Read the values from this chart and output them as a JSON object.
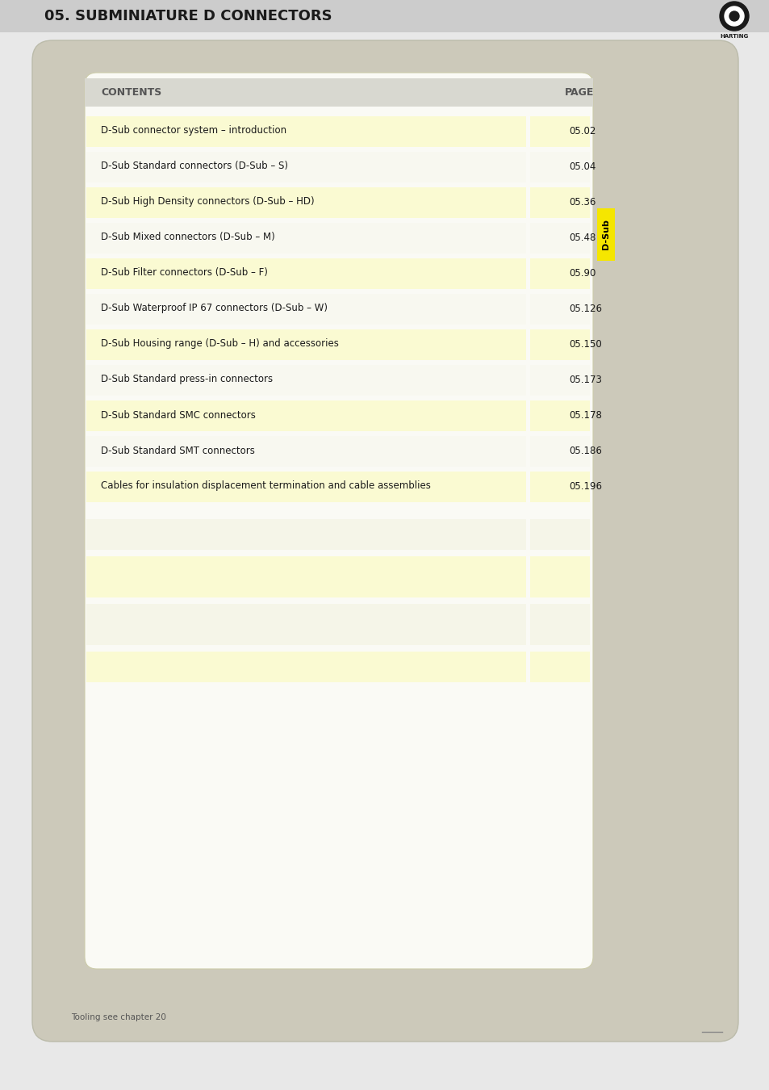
{
  "page_bg": "#e8e8e8",
  "card_bg": "#d8d5c8",
  "inner_bg": "#f5f5e8",
  "header_bar_color": "#d0cfc8",
  "title_text": "05. SUBMINIATURE D CONNECTORS",
  "title_color": "#1a1a1a",
  "title_fontsize": 13,
  "contents_label": "CONTENTS",
  "page_label": "PAGE",
  "header_text_color": "#555555",
  "tab_text": "D-Sub",
  "tab_bg": "#f5e600",
  "tab_text_color": "#000000",
  "footer_text": "Tooling see chapter 20",
  "footer_color": "#555555",
  "row_yellow": "#fafad2",
  "row_white": "#f8f8f0",
  "entries": [
    {
      "label": "D-Sub connector system – introduction",
      "page": "05.02",
      "yellow": true
    },
    {
      "label": "D-Sub Standard connectors (D-Sub – S)",
      "page": "05.04",
      "yellow": false
    },
    {
      "label": "D-Sub High Density connectors (D-Sub – HD)",
      "page": "05.36",
      "yellow": true
    },
    {
      "label": "D-Sub Mixed connectors (D-Sub – M)",
      "page": "05.48",
      "yellow": false
    },
    {
      "label": "D-Sub Filter connectors (D-Sub – F)",
      "page": "05.90",
      "yellow": true
    },
    {
      "label": "D-Sub Waterproof IP 67 connectors (D-Sub – W)",
      "page": "05.126",
      "yellow": false
    },
    {
      "label": "D-Sub Housing range (D-Sub – H) and accessories",
      "page": "05.150",
      "yellow": true
    },
    {
      "label": "D-Sub Standard press-in connectors",
      "page": "05.173",
      "yellow": false
    },
    {
      "label": "D-Sub Standard SMC connectors",
      "page": "05.178",
      "yellow": true
    },
    {
      "label": "D-Sub Standard SMT connectors",
      "page": "05.186",
      "yellow": false
    },
    {
      "label": "Cables for insulation displacement termination and cable assemblies",
      "page": "05.196",
      "yellow": true
    }
  ],
  "empty_rows": [
    {
      "yellow": false,
      "tall": false
    },
    {
      "yellow": true,
      "tall": true
    },
    {
      "yellow": false,
      "tall": true
    },
    {
      "yellow": true,
      "tall": false
    }
  ]
}
